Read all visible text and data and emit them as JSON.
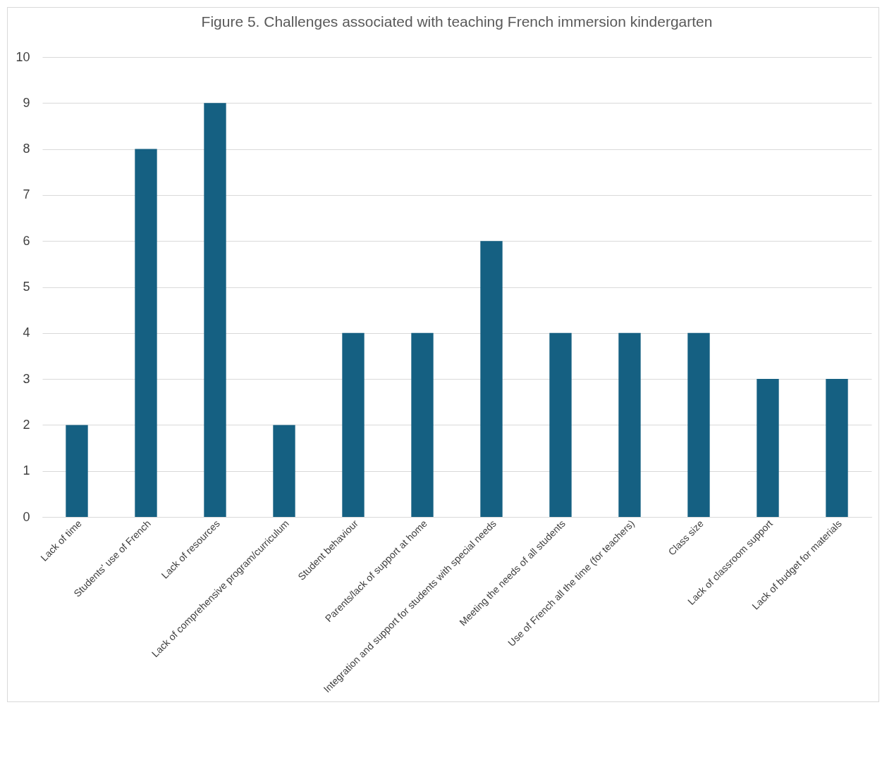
{
  "chart_data": {
    "type": "bar",
    "title": "Figure 5. Challenges associated with teaching French immersion kindergarten",
    "categories": [
      "Lack of time",
      "Students' use of French",
      "Lack of resources",
      "Lack of comprehensive program/curriculum",
      "Student behaviour",
      "Parents/lack of support at home",
      "Integration and support for students with special needs",
      "Meeting the needs of all students",
      "Use of French all the time (for teachers)",
      "Class size",
      "Lack of classroom support",
      "Lack of budget for materials"
    ],
    "values": [
      2,
      8,
      9,
      2,
      4,
      4,
      6,
      4,
      4,
      4,
      3,
      3
    ],
    "color": "#156082",
    "ylim": [
      0,
      10
    ],
    "yticks": [
      0,
      1,
      2,
      3,
      4,
      5,
      6,
      7,
      8,
      9,
      10
    ],
    "grid": "y"
  }
}
